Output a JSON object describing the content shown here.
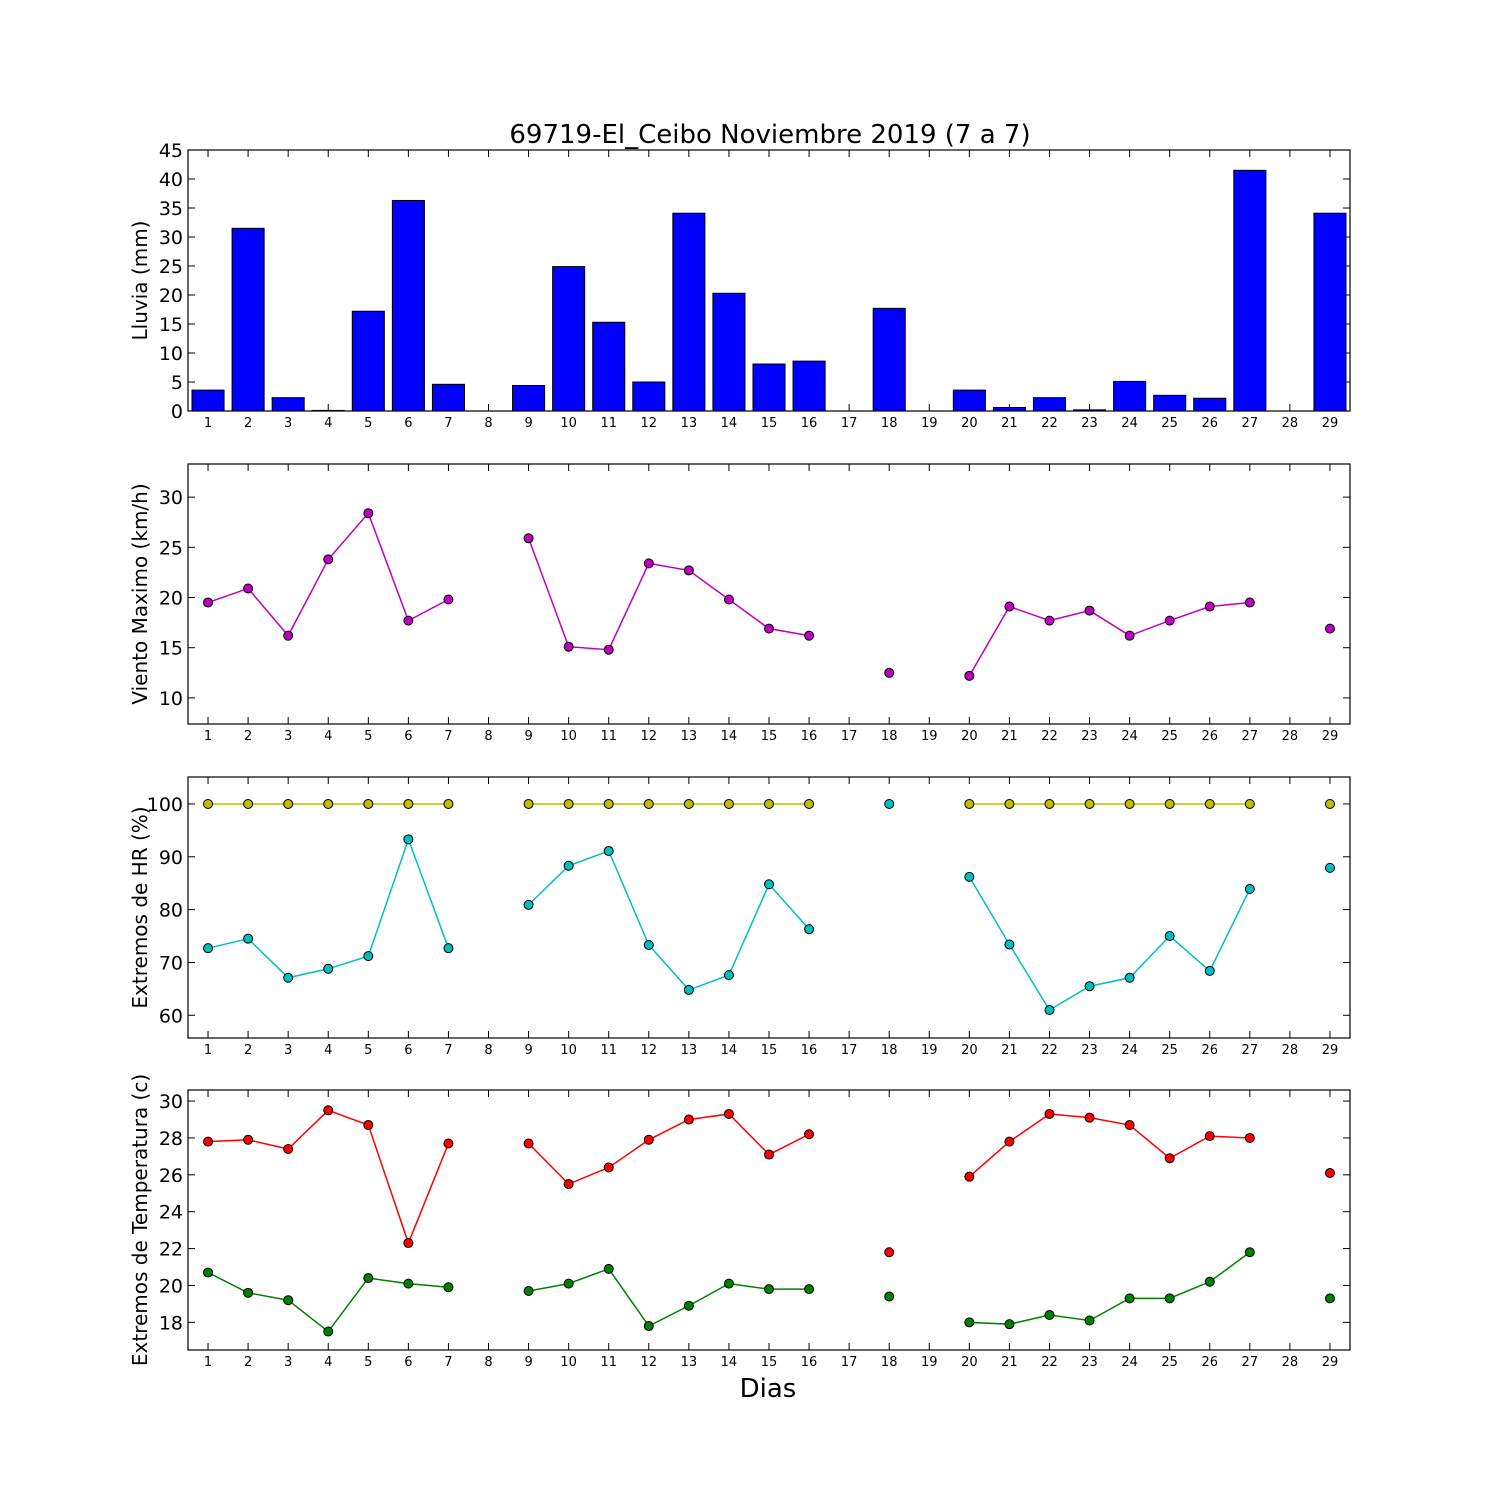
{
  "title": "69719-El_Ceibo Noviembre 2019  (7 a 7)",
  "xlabel": "Dias",
  "colors": {
    "rain": "#0000ff",
    "wind": "#bf00bf",
    "hr_max": "#bfbf00",
    "hr_min": "#00bfbf",
    "t_max": "#ff0000",
    "t_min": "#008000"
  },
  "chart_data": [
    {
      "type": "bar",
      "ylabel": "Lluvia (mm)",
      "ylim": [
        0,
        45
      ],
      "yticks": [
        0,
        5,
        10,
        15,
        20,
        25,
        30,
        35,
        40,
        45
      ],
      "x": [
        1,
        2,
        3,
        4,
        5,
        6,
        7,
        8,
        9,
        10,
        11,
        12,
        13,
        14,
        15,
        16,
        17,
        18,
        19,
        20,
        21,
        22,
        23,
        24,
        25,
        26,
        27,
        28,
        29
      ],
      "values": [
        3.6,
        31.5,
        2.3,
        0.1,
        17.2,
        36.3,
        4.6,
        null,
        4.4,
        24.9,
        15.3,
        5.0,
        34.1,
        20.3,
        8.1,
        8.6,
        0.0,
        17.7,
        0.0,
        3.6,
        0.6,
        2.3,
        0.2,
        5.1,
        2.7,
        2.2,
        41.5,
        null,
        34.1
      ]
    },
    {
      "type": "line",
      "ylabel": "Viento Maximo (km/h)",
      "ylim": [
        7.4,
        33.3
      ],
      "yticks": [
        10,
        15,
        20,
        25,
        30
      ],
      "x": [
        1,
        2,
        3,
        4,
        5,
        6,
        7,
        8,
        9,
        10,
        11,
        12,
        13,
        14,
        15,
        16,
        17,
        18,
        19,
        20,
        21,
        22,
        23,
        24,
        25,
        26,
        27,
        28,
        29
      ],
      "series": [
        {
          "values": [
            19.5,
            20.9,
            16.2,
            23.8,
            28.4,
            17.7,
            19.8,
            null,
            25.9,
            15.1,
            14.8,
            23.4,
            22.7,
            19.8,
            16.9,
            16.2,
            null,
            12.5,
            null,
            12.2,
            19.1,
            17.7,
            18.7,
            16.2,
            17.7,
            19.1,
            19.5,
            null,
            16.9
          ]
        }
      ]
    },
    {
      "type": "line",
      "ylabel": "Extremos de HR (%)",
      "ylim": [
        55.7,
        105.1
      ],
      "yticks": [
        60,
        70,
        80,
        90,
        100
      ],
      "x": [
        1,
        2,
        3,
        4,
        5,
        6,
        7,
        8,
        9,
        10,
        11,
        12,
        13,
        14,
        15,
        16,
        17,
        18,
        19,
        20,
        21,
        22,
        23,
        24,
        25,
        26,
        27,
        28,
        29
      ],
      "series": [
        {
          "values": [
            100,
            100,
            100,
            100,
            100,
            100,
            100,
            null,
            100,
            100,
            100,
            100,
            100,
            100,
            100,
            100,
            null,
            null,
            null,
            100,
            100,
            100,
            100,
            100,
            100,
            100,
            100,
            null,
            100
          ]
        },
        {
          "values": [
            72.7,
            74.5,
            67.1,
            68.8,
            71.2,
            93.3,
            72.7,
            null,
            80.9,
            88.3,
            91.1,
            73.3,
            64.8,
            67.6,
            84.8,
            76.3,
            null,
            100,
            null,
            86.2,
            73.4,
            61.0,
            65.5,
            67.1,
            75.0,
            68.4,
            83.9,
            null,
            87.9
          ]
        }
      ]
    },
    {
      "type": "line",
      "ylabel": "Extremos de Temperatura (c)",
      "ylim": [
        16.5,
        30.6
      ],
      "yticks": [
        18,
        20,
        22,
        24,
        26,
        28,
        30
      ],
      "x": [
        1,
        2,
        3,
        4,
        5,
        6,
        7,
        8,
        9,
        10,
        11,
        12,
        13,
        14,
        15,
        16,
        17,
        18,
        19,
        20,
        21,
        22,
        23,
        24,
        25,
        26,
        27,
        28,
        29
      ],
      "series": [
        {
          "values": [
            27.8,
            27.9,
            27.4,
            29.5,
            28.7,
            22.3,
            27.7,
            null,
            27.7,
            25.5,
            26.4,
            27.9,
            29.0,
            29.3,
            27.1,
            28.2,
            null,
            21.8,
            null,
            25.9,
            27.8,
            29.3,
            29.1,
            28.7,
            26.9,
            28.1,
            28.0,
            null,
            26.1
          ]
        },
        {
          "values": [
            20.7,
            19.6,
            19.2,
            17.5,
            20.4,
            20.1,
            19.9,
            null,
            19.7,
            20.1,
            20.9,
            17.8,
            18.9,
            20.1,
            19.8,
            19.8,
            null,
            19.4,
            null,
            18.0,
            17.9,
            18.4,
            18.1,
            19.3,
            19.3,
            20.2,
            21.8,
            null,
            19.3
          ]
        }
      ]
    }
  ]
}
